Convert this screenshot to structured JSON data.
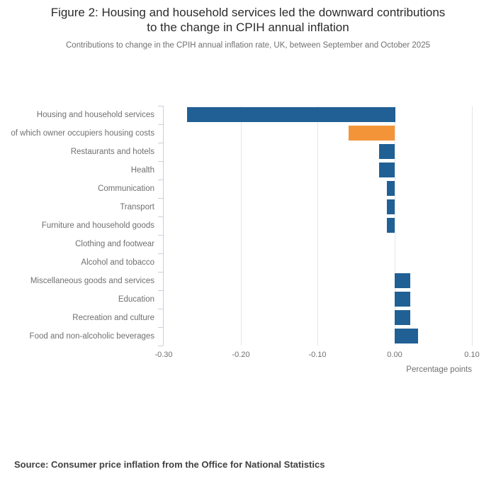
{
  "header": {
    "title_line1": "Figure 2: Housing and household services led the downward contributions",
    "title_line2": "to the change in CPIH annual inflation",
    "subtitle": "Contributions to change in the CPIH annual inflation rate, UK, between September and October 2025"
  },
  "chart_data": {
    "type": "bar",
    "orientation": "horizontal",
    "title": "Figure 2: Housing and household services led the downward contributions to the change in CPIH annual inflation",
    "subtitle": "Contributions to change in the CPIH annual inflation rate, UK, between September and October 2025",
    "categories": [
      "Housing and household services",
      "of which owner occupiers housing costs",
      "Restaurants and hotels",
      "Health",
      "Communication",
      "Transport",
      "Furniture and household goods",
      "Clothing and footwear",
      "Alcohol and tobacco",
      "Miscellaneous goods and services",
      "Education",
      "Recreation and culture",
      "Food and non-alcoholic beverages"
    ],
    "values": [
      -0.27,
      -0.06,
      -0.02,
      -0.02,
      -0.01,
      -0.01,
      -0.01,
      0.0,
      0.0,
      0.02,
      0.02,
      0.02,
      0.03
    ],
    "bar_colors": [
      "#206095",
      "#f39438",
      "#206095",
      "#206095",
      "#206095",
      "#206095",
      "#206095",
      "#206095",
      "#206095",
      "#206095",
      "#206095",
      "#206095",
      "#206095"
    ],
    "colors": {
      "default_blue": "#206095",
      "highlight_orange": "#f39438"
    },
    "xlabel": "Percentage points",
    "ylabel": "",
    "x_ticks": [
      -0.3,
      -0.2,
      -0.1,
      0.0,
      0.1
    ],
    "x_tick_labels": [
      "-0.30",
      "-0.20",
      "-0.10",
      "0.00",
      "0.10"
    ],
    "xlim": [
      -0.3,
      0.1
    ],
    "grid": true,
    "legend": "none"
  },
  "footer": {
    "source": "Source: Consumer price inflation from the Office for National Statistics"
  }
}
